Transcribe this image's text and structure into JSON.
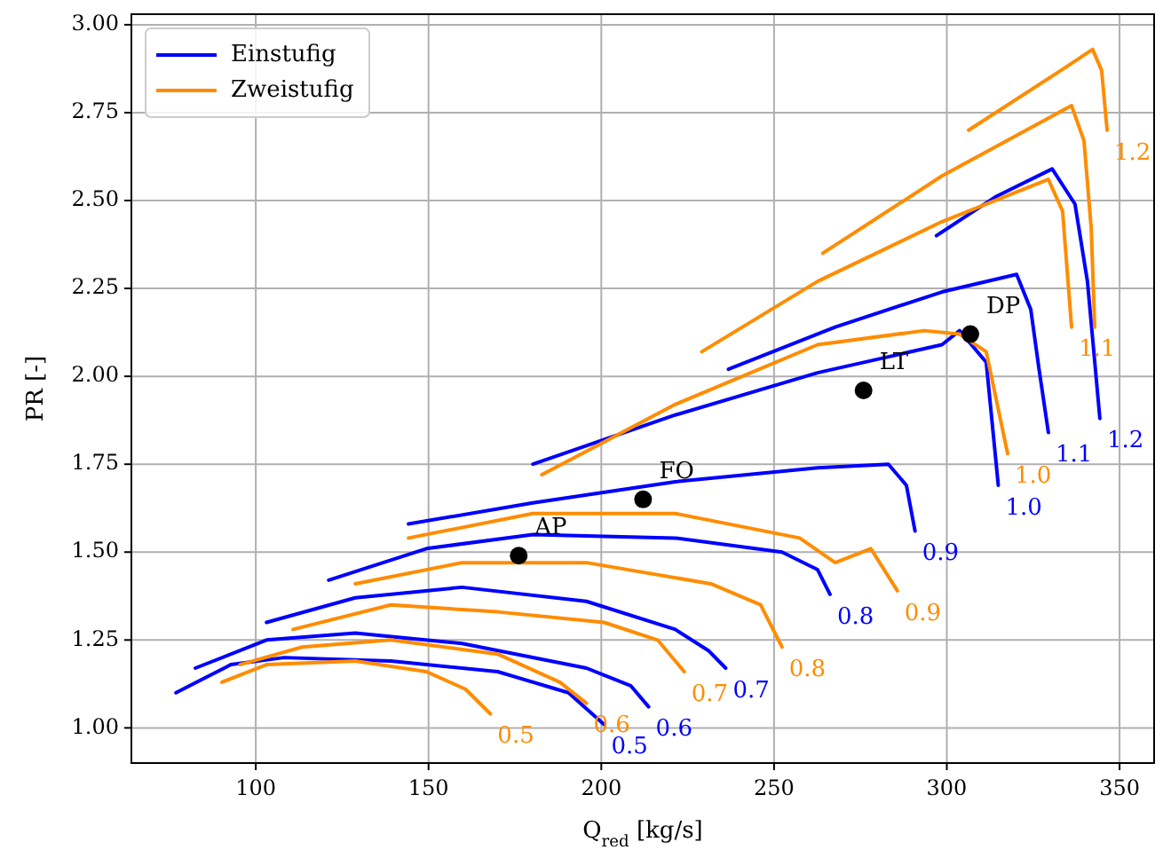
{
  "chart_data": {
    "type": "line",
    "xlabel": "Q$_{red}$ [kg/s]",
    "ylabel": "PR [-]",
    "xlim": [
      64,
      360
    ],
    "ylim": [
      0.9,
      3.03
    ],
    "xticks": [
      100,
      150,
      200,
      250,
      300,
      350
    ],
    "yticks": [
      {
        "value": 1,
        "label": "1.00"
      },
      {
        "value": 1.25,
        "label": "1.25"
      },
      {
        "value": 1.5,
        "label": "1.50"
      },
      {
        "value": 1.75,
        "label": "1.75"
      },
      {
        "value": 2,
        "label": "2.00"
      },
      {
        "value": 2.25,
        "label": "2.25"
      },
      {
        "value": 2.5,
        "label": "2.50"
      },
      {
        "value": 2.75,
        "label": "2.75"
      },
      {
        "value": 3,
        "label": "3.00"
      }
    ],
    "grid": true,
    "legend": "top left",
    "line_style": "solid",
    "marker": "none",
    "series": [
      {
        "name": "Einstufig",
        "color": "#0000ff",
        "x": [
          76.9,
          92.8,
          108.2,
          139.1,
          170.0,
          190.5,
          200.8
        ],
        "values": [
          1.1,
          1.18,
          1.2,
          1.19,
          1.16,
          1.1,
          1.01
        ]
      },
      {
        "color": "#0000ff",
        "x": [
          82.5,
          103.1,
          128.8,
          159.7,
          195.7,
          208.5,
          213.7
        ],
        "values": [
          1.17,
          1.25,
          1.27,
          1.24,
          1.17,
          1.12,
          1.06
        ]
      },
      {
        "color": "#0000ff",
        "x": [
          103.1,
          128.8,
          159.7,
          195.7,
          221.4,
          231.0,
          236.0
        ],
        "values": [
          1.3,
          1.37,
          1.4,
          1.36,
          1.28,
          1.22,
          1.17
        ]
      },
      {
        "color": "#0000ff",
        "x": [
          121.1,
          149.4,
          180.2,
          221.4,
          252.3,
          262.6,
          266.2
        ],
        "values": [
          1.42,
          1.51,
          1.55,
          1.54,
          1.5,
          1.45,
          1.38
        ]
      },
      {
        "color": "#0000ff",
        "x": [
          144.2,
          180.2,
          221.4,
          262.6,
          283.1,
          288.3,
          290.8
        ],
        "values": [
          1.58,
          1.64,
          1.7,
          1.74,
          1.75,
          1.69,
          1.56
        ]
      },
      {
        "color": "#0000ff",
        "x": [
          180.2,
          221.4,
          262.6,
          298.6,
          303.7,
          311.4,
          314.9
        ],
        "values": [
          1.75,
          1.89,
          2.01,
          2.09,
          2.13,
          2.04,
          1.69
        ]
      },
      {
        "color": "#0000ff",
        "x": [
          236.8,
          267.7,
          298.6,
          320.2,
          324.3,
          326.7,
          329.4
        ],
        "values": [
          2.02,
          2.14,
          2.24,
          2.29,
          2.19,
          2.02,
          1.84
        ]
      },
      {
        "color": "#0000ff",
        "x": [
          297.0,
          314.0,
          330.5,
          337.1,
          340.7,
          344.3
        ],
        "values": [
          2.4,
          2.51,
          2.59,
          2.49,
          2.27,
          1.88
        ]
      },
      {
        "name": "Zweistufig",
        "color": "#ff8c00",
        "x": [
          90.2,
          103.1,
          128.8,
          149.4,
          160.7,
          167.9
        ],
        "values": [
          1.13,
          1.18,
          1.19,
          1.16,
          1.11,
          1.04
        ]
      },
      {
        "color": "#ff8c00",
        "x": [
          95.4,
          113.4,
          139.1,
          170.0,
          188.0,
          195.7
        ],
        "values": [
          1.18,
          1.23,
          1.25,
          1.21,
          1.13,
          1.07
        ]
      },
      {
        "color": "#ff8c00",
        "x": [
          110.8,
          139.1,
          170.0,
          200.8,
          216.3,
          224.0
        ],
        "values": [
          1.28,
          1.35,
          1.33,
          1.3,
          1.25,
          1.16
        ]
      },
      {
        "color": "#ff8c00",
        "x": [
          128.8,
          159.7,
          195.7,
          231.7,
          246.1,
          252.3
        ],
        "values": [
          1.41,
          1.47,
          1.47,
          1.41,
          1.35,
          1.23
        ]
      },
      {
        "color": "#ff8c00",
        "x": [
          144.2,
          180.2,
          221.4,
          257.4,
          267.7,
          278.0,
          285.7
        ],
        "values": [
          1.54,
          1.61,
          1.61,
          1.54,
          1.47,
          1.51,
          1.39
        ]
      },
      {
        "color": "#ff8c00",
        "x": [
          182.8,
          221.4,
          262.6,
          293.4,
          303.7,
          311.4,
          317.6
        ],
        "values": [
          1.72,
          1.92,
          2.09,
          2.13,
          2.12,
          2.07,
          1.78
        ]
      },
      {
        "color": "#ff8c00",
        "x": [
          229.1,
          262.6,
          298.6,
          329.4,
          333.5,
          336.1
        ],
        "values": [
          2.07,
          2.27,
          2.44,
          2.56,
          2.47,
          2.14
        ]
      },
      {
        "color": "#ff8c00",
        "x": [
          264.1,
          298.6,
          336.1,
          339.7,
          341.8,
          342.8
        ],
        "values": [
          2.35,
          2.57,
          2.77,
          2.67,
          2.42,
          2.14
        ]
      },
      {
        "color": "#ff8c00",
        "x": [
          306.3,
          334.6,
          342.2,
          344.8,
          346.4
        ],
        "values": [
          2.7,
          2.88,
          2.93,
          2.87,
          2.7
        ]
      },
      {
        "type": "scatter",
        "marker": "circle",
        "color": "#000000",
        "x": [
          176.1,
          212.1,
          275.9,
          306.8
        ],
        "values": [
          1.49,
          1.65,
          1.96,
          2.12
        ]
      }
    ],
    "annotations": [
      {
        "text": "AP",
        "x": 176.1,
        "y": 1.49
      },
      {
        "text": "FO",
        "x": 212.1,
        "y": 1.65
      },
      {
        "text": "LT",
        "x": 275.9,
        "y": 1.96
      },
      {
        "text": "DP",
        "x": 306.8,
        "y": 2.12
      },
      {
        "text": "0.5",
        "x": 200.8,
        "y": 1.01
      },
      {
        "text": "0.6",
        "x": 213.7,
        "y": 1.06
      },
      {
        "text": "0.7",
        "x": 236.0,
        "y": 1.17
      },
      {
        "text": "0.8",
        "x": 266.2,
        "y": 1.38
      },
      {
        "text": "0.9",
        "x": 290.8,
        "y": 1.56
      },
      {
        "text": "1.0",
        "x": 314.9,
        "y": 1.69
      },
      {
        "text": "1.1",
        "x": 329.4,
        "y": 1.84
      },
      {
        "text": "1.2",
        "x": 344.3,
        "y": 1.88
      },
      {
        "text": "0.5",
        "x": 167.9,
        "y": 1.04
      },
      {
        "text": "0.6",
        "x": 195.7,
        "y": 1.07
      },
      {
        "text": "0.7",
        "x": 224.0,
        "y": 1.16
      },
      {
        "text": "0.8",
        "x": 252.3,
        "y": 1.23
      },
      {
        "text": "0.9",
        "x": 285.7,
        "y": 1.39
      },
      {
        "text": "1.0",
        "x": 317.6,
        "y": 1.78
      },
      {
        "text": "1.1",
        "x": 336.1,
        "y": 2.14
      },
      {
        "text": "1.2",
        "x": 346.4,
        "y": 2.7
      }
    ]
  }
}
